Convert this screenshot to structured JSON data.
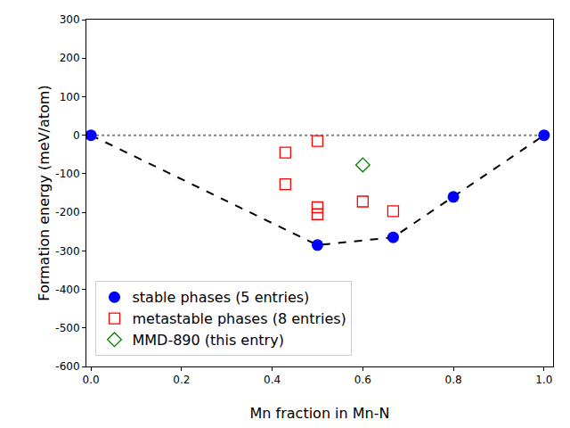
{
  "chart_data": {
    "type": "scatter",
    "x_label": "Mn fraction in Mn-N",
    "y_label": "Formation energy (meV/atom)",
    "xlim": [
      -0.01,
      1.02
    ],
    "xticks": [
      {
        "value": 0,
        "label": "0.0"
      },
      {
        "value": 0.2,
        "label": "0.2"
      },
      {
        "value": 0.4,
        "label": "0.4"
      },
      {
        "value": 0.6,
        "label": "0.6"
      },
      {
        "value": 0.8,
        "label": "0.8"
      },
      {
        "value": 1,
        "label": "1.0"
      }
    ],
    "ylim": [
      -600,
      300
    ],
    "yticks": [
      -600,
      -500,
      -400,
      -300,
      -200,
      -100,
      0,
      100,
      200,
      300
    ],
    "grid": false,
    "legend": "lower left",
    "series": [
      {
        "type": "line",
        "color": "#808080",
        "line_style": "dotted",
        "x": [
          0,
          1
        ],
        "values": [
          0,
          0
        ]
      },
      {
        "type": "line",
        "color": "#000000",
        "line_style": "dashed",
        "x": [
          0,
          0.5,
          0.667,
          0.8,
          1
        ],
        "values": [
          0,
          -285,
          -265,
          -160,
          0
        ]
      },
      {
        "type": "scatter",
        "name": "stable phases (5 entries)",
        "color": "#0000ff",
        "marker": "circle",
        "x": [
          0,
          0.5,
          0.667,
          0.8,
          1
        ],
        "values": [
          0,
          -285,
          -265,
          -160,
          0
        ]
      },
      {
        "type": "scatter",
        "name": "metastable phases (8 entries)",
        "color": "#ff0000",
        "marker": "square-open",
        "x": [
          0.429,
          0.429,
          0.5,
          0.5,
          0.5,
          0.6,
          0.667
        ],
        "values": [
          -45,
          -127,
          -15,
          -187,
          -205,
          -172,
          -197
        ]
      },
      {
        "type": "scatter",
        "name": "MMD-890 (this entry)",
        "color": "#008000",
        "marker": "diamond-open",
        "x": [
          0.6
        ],
        "values": [
          -77
        ]
      }
    ]
  }
}
